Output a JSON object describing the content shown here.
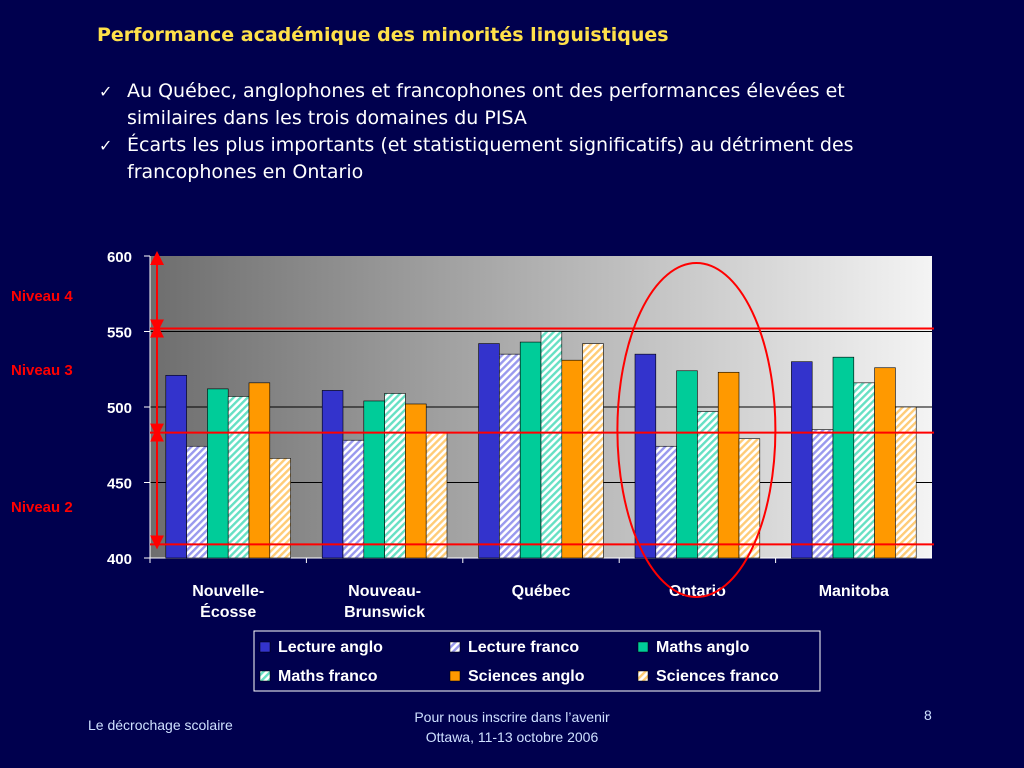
{
  "slide": {
    "title": "Performance académique des minorités linguistiques",
    "bullets": [
      "Au Québec, anglophones et francophones ont des performances élevées et similaires dans les trois domaines du PISA",
      "Écarts les plus importants (et statistiquement significatifs) au détriment des francophones en Ontario"
    ],
    "check_icon": "check-icon"
  },
  "colors": {
    "background": "#00004e",
    "title": "#ffe14a",
    "annotation": "#ff0000",
    "lecture_anglo": "#3333cc",
    "lecture_franco": "#9999ee",
    "maths_anglo": "#00cc99",
    "maths_franco": "#66e0c4",
    "sciences_anglo": "#ff9900",
    "sciences_franco": "#ffcc77"
  },
  "chart_data": {
    "type": "bar",
    "categories": [
      "Nouvelle-\nÉcosse",
      "Nouveau-\nBrunswick",
      "Québec",
      "Ontario",
      "Manitoba"
    ],
    "series": [
      {
        "name": "Lecture anglo",
        "values": [
          521,
          511,
          542,
          535,
          530
        ]
      },
      {
        "name": "Lecture franco",
        "values": [
          474,
          478,
          535,
          474,
          485
        ]
      },
      {
        "name": "Maths anglo",
        "values": [
          512,
          504,
          543,
          524,
          533
        ]
      },
      {
        "name": "Maths franco",
        "values": [
          507,
          509,
          550,
          497,
          516
        ]
      },
      {
        "name": "Sciences anglo",
        "values": [
          516,
          502,
          531,
          523,
          526
        ]
      },
      {
        "name": "Sciences franco",
        "values": [
          466,
          483,
          542,
          479,
          500
        ]
      }
    ],
    "ylim": [
      400,
      600
    ],
    "yticks": [
      400,
      450,
      500,
      550,
      600
    ],
    "grid": true,
    "legend_position": "bottom",
    "reference_lines": [
      409,
      483,
      552
    ],
    "levels": [
      {
        "label": "Niveau 4",
        "from": 552,
        "to": 600
      },
      {
        "label": "Niveau 3",
        "from": 483,
        "to": 552
      },
      {
        "label": "Niveau 2",
        "from": 409,
        "to": 483
      }
    ],
    "highlight_category": "Ontario"
  },
  "footer": {
    "left": "Le décrochage scolaire",
    "center_line1": "Pour nous inscrire dans l’avenir",
    "center_line2": "Ottawa, 11-13 octobre 2006",
    "page_number": "8"
  }
}
